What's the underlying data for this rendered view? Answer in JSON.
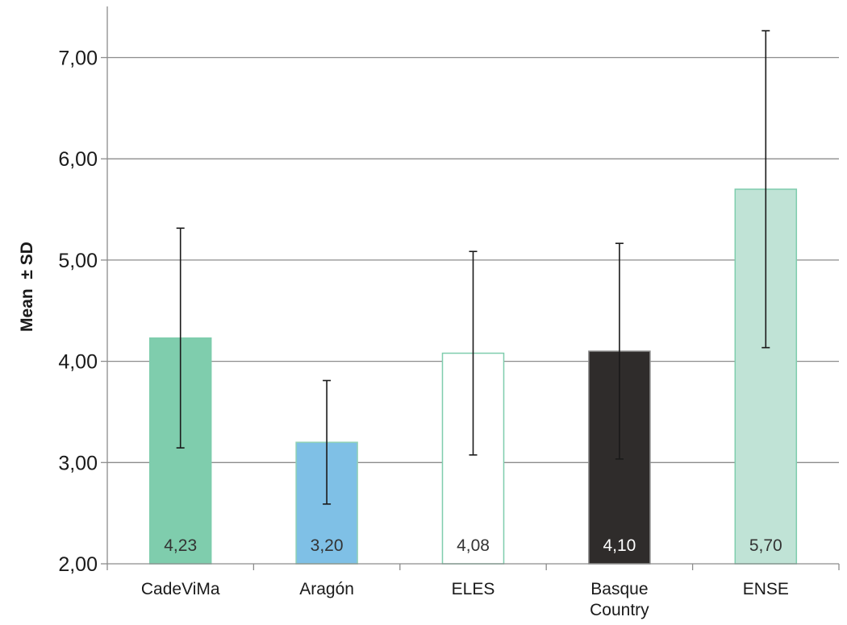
{
  "chart_data": {
    "type": "bar",
    "title": "",
    "xlabel": "",
    "ylabel": "Mean  ± SD",
    "ylim": [
      2.0,
      7.5
    ],
    "yticks": [
      2.0,
      3.0,
      4.0,
      5.0,
      6.0,
      7.0
    ],
    "ytick_labels": [
      "2,00",
      "3,00",
      "4,00",
      "5,00",
      "6,00",
      "7,00"
    ],
    "grid": "horizontal",
    "legend": "none",
    "categories": [
      [
        "CadeViMa"
      ],
      [
        "Aragón"
      ],
      [
        "ELES"
      ],
      [
        "Basque",
        "Country"
      ],
      [
        "ENSE"
      ]
    ],
    "values": [
      4.23,
      3.2,
      4.08,
      4.1,
      5.7
    ],
    "value_labels": [
      "4,23",
      "3,20",
      "4,08",
      "4,10",
      "5,70"
    ],
    "sd": [
      1.085,
      0.61,
      1.005,
      1.065,
      1.565
    ],
    "bar_fill": [
      "#7fcdad",
      "#7fc0e6",
      "#ffffff",
      "#2f2c2b",
      "#c0e3d6"
    ],
    "bar_stroke": [
      "#7fcdad",
      "#8fd0b5",
      "#7fcdad",
      "#8a8a8a",
      "#7fcdad"
    ],
    "label_color": [
      "#333333",
      "#333333",
      "#333333",
      "#ffffff",
      "#333333"
    ]
  }
}
